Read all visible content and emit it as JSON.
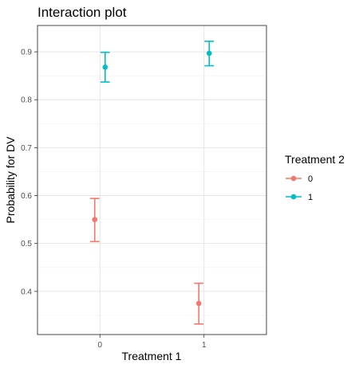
{
  "chart_data": {
    "type": "scatter",
    "title": "Interaction plot",
    "xlabel": "Treatment 1",
    "ylabel": "Probability for DV",
    "categories": [
      "0",
      "1"
    ],
    "xlim": [
      -0.6,
      1.6
    ],
    "ylim": [
      0.31,
      0.955
    ],
    "yticks": [
      0.4,
      0.5,
      0.6,
      0.7,
      0.8,
      0.9
    ],
    "grid": true,
    "legend": {
      "title": "Treatment 2",
      "position": "right"
    },
    "series": [
      {
        "name": "0",
        "color": "#F8766D",
        "x": [
          0,
          1
        ],
        "y": [
          0.55,
          0.375
        ],
        "ymin": [
          0.504,
          0.332
        ],
        "ymax": [
          0.594,
          0.417
        ]
      },
      {
        "name": "1",
        "color": "#00BFC4",
        "x": [
          0,
          1
        ],
        "y": [
          0.868,
          0.897
        ],
        "ymin": [
          0.837,
          0.871
        ],
        "ymax": [
          0.899,
          0.922
        ]
      }
    ]
  }
}
